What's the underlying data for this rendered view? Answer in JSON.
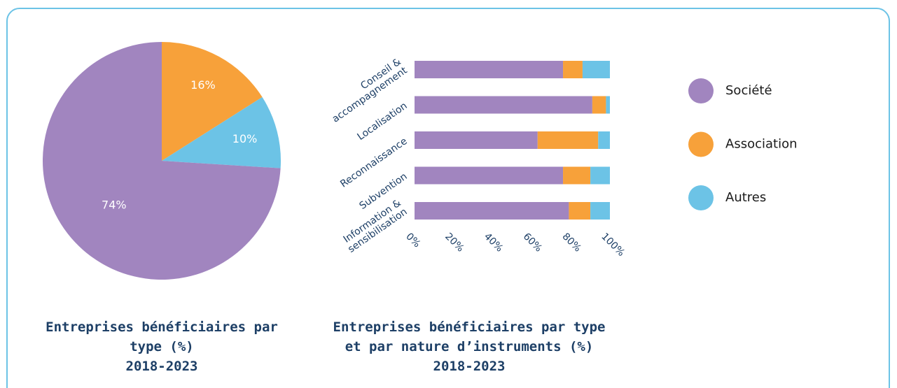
{
  "chart_data": [
    {
      "type": "pie",
      "title": "Entreprises bénéficiaires par type (%)",
      "subtitle": "2018-2023",
      "categories": [
        "Association",
        "Autres",
        "Société"
      ],
      "values": [
        16,
        10,
        74
      ],
      "value_labels": [
        "16%",
        "10%",
        "74%"
      ],
      "colors": [
        "#f7a13a",
        "#6cc3e6",
        "#a185bf"
      ]
    },
    {
      "type": "stacked-bar-horizontal",
      "title": "Entreprises bénéficiaires par type et par nature d’instruments (%)",
      "subtitle": "2018-2023",
      "categories": [
        "Conseil & accompagnement",
        "Localisation",
        "Reconnaissance",
        "Subvention",
        "Information & sensibilisation"
      ],
      "series": [
        {
          "name": "Société",
          "color": "#a185bf",
          "values": [
            76,
            91,
            63,
            76,
            79
          ]
        },
        {
          "name": "Association",
          "color": "#f7a13a",
          "values": [
            10,
            7,
            31,
            14,
            11
          ]
        },
        {
          "name": "Autres",
          "color": "#6cc3e6",
          "values": [
            14,
            2,
            6,
            10,
            10
          ]
        }
      ],
      "xlim": [
        0,
        100
      ],
      "xticks": [
        {
          "value": 0,
          "label": "0%"
        },
        {
          "value": 20,
          "label": "20%"
        },
        {
          "value": 40,
          "label": "40%"
        },
        {
          "value": 60,
          "label": "60%"
        },
        {
          "value": 80,
          "label": "80%"
        },
        {
          "value": 100,
          "label": "100%"
        }
      ],
      "legend": "right"
    }
  ]
}
